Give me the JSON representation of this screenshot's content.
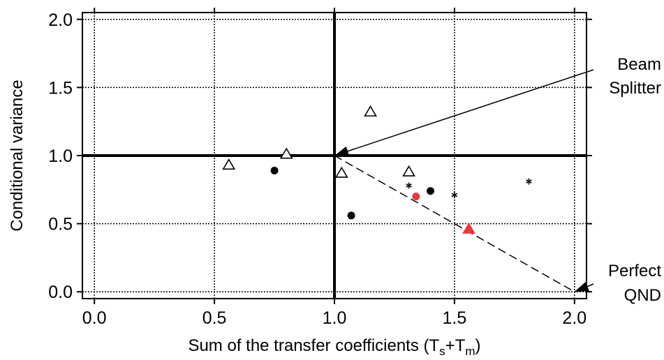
{
  "chart_data": {
    "type": "scatter",
    "title": "",
    "xlabel": "Sum of the transfer coefficients  (T",
    "xlabel_sub1": "s",
    "xlabel_mid": "+T",
    "xlabel_sub2": "m",
    "xlabel_end": ")",
    "ylabel": "Conditional variance",
    "xlim": [
      -0.05,
      2.05
    ],
    "ylim": [
      -0.05,
      2.05
    ],
    "xticks": [
      "0.0",
      "0.5",
      "1.0",
      "1.5",
      "2.0"
    ],
    "yticks": [
      "0.0",
      "0.5",
      "1.0",
      "1.5",
      "2.0"
    ],
    "grid": true,
    "colors": {
      "black": "#000000",
      "red": "#e8393f"
    },
    "series": [
      {
        "marker": "triangle-open",
        "color": "#000000",
        "points": [
          [
            0.56,
            0.93
          ],
          [
            0.8,
            1.01
          ],
          [
            1.03,
            0.87
          ],
          [
            1.15,
            1.32
          ],
          [
            1.31,
            0.88
          ]
        ]
      },
      {
        "marker": "circle-filled",
        "color": "#000000",
        "points": [
          [
            0.75,
            0.89
          ],
          [
            1.07,
            0.56
          ],
          [
            1.4,
            0.74
          ]
        ]
      },
      {
        "marker": "asterisk",
        "color": "#000000",
        "points": [
          [
            1.31,
            0.78
          ],
          [
            1.5,
            0.71
          ],
          [
            1.81,
            0.81
          ]
        ]
      },
      {
        "marker": "circle-filled",
        "color": "#e8393f",
        "points": [
          [
            1.34,
            0.7
          ]
        ]
      },
      {
        "marker": "triangle-filled",
        "color": "#e8393f",
        "points": [
          [
            1.56,
            0.46
          ]
        ]
      }
    ],
    "reference_lines": {
      "bold_vertical_x": 1.0,
      "bold_horizontal_y": 1.0,
      "dashed_line": [
        [
          1.0,
          1.0
        ],
        [
          2.0,
          0.0
        ]
      ]
    },
    "annotations": [
      {
        "lines": [
          "Beam",
          "Splitter"
        ],
        "target": [
          1.0,
          1.0
        ]
      },
      {
        "lines": [
          "Perfect",
          "QND"
        ],
        "target": [
          2.0,
          0.0
        ]
      }
    ]
  }
}
